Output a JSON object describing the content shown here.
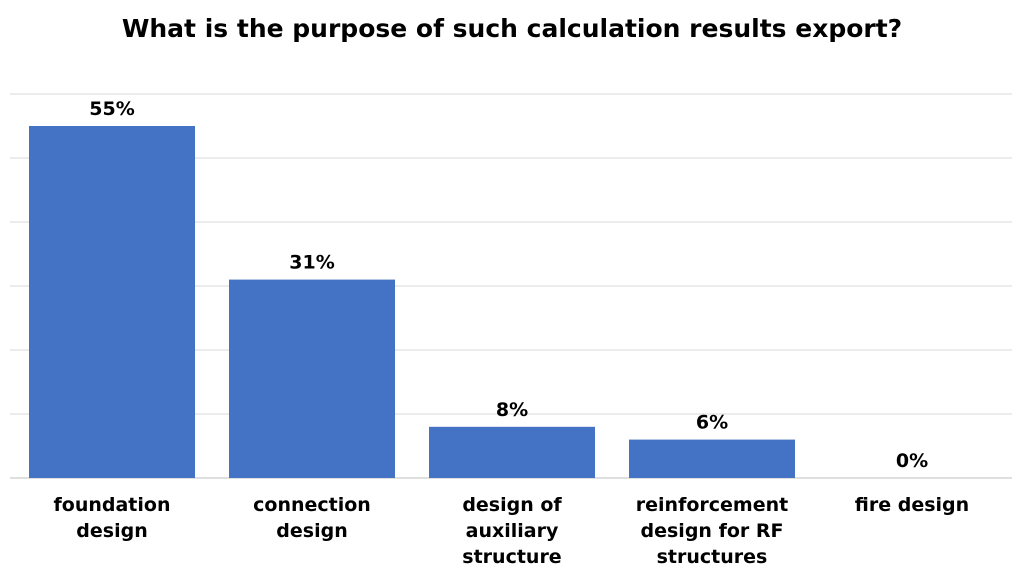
{
  "chart_data": {
    "type": "bar",
    "title": "What is the purpose of such calculation results export?",
    "categories": [
      [
        "foundation",
        "design"
      ],
      [
        "connection",
        "design"
      ],
      [
        "design of",
        "auxiliary",
        "structure"
      ],
      [
        "reinforcement",
        "design for RF",
        "structures"
      ],
      [
        "fire design"
      ]
    ],
    "values": [
      55,
      31,
      8,
      6,
      0
    ],
    "data_labels": [
      "55%",
      "31%",
      "8%",
      "6%",
      "0%"
    ],
    "ylim": [
      0,
      60
    ],
    "grid": true,
    "legend": "none",
    "bar_color": "#4472C4",
    "grid_color": "#D9D9D9",
    "xlabel": "",
    "ylabel": ""
  }
}
